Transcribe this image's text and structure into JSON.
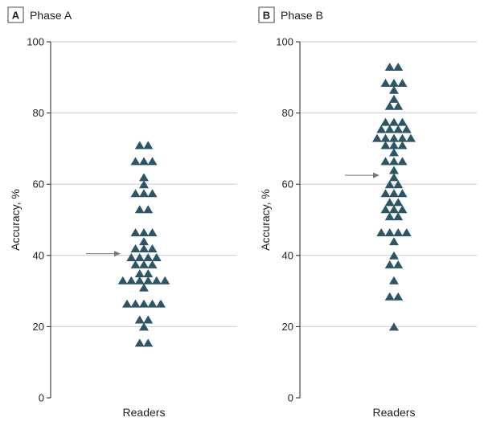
{
  "chart_data": [
    {
      "type": "scatter",
      "panel_letter": "A",
      "title": "Phase A",
      "xlabel": "Readers",
      "ylabel": "Accuracy, %",
      "ylim": [
        0,
        100
      ],
      "yticks": [
        "0",
        "20",
        "40",
        "60",
        "80",
        "100"
      ],
      "grid": true,
      "marker_color": "#2d5566",
      "arrow_value": 40.5,
      "points": [
        {
          "x": -0.5,
          "y": 71
        },
        {
          "x": 0.5,
          "y": 71
        },
        {
          "x": -1,
          "y": 66.5
        },
        {
          "x": 0,
          "y": 66.5
        },
        {
          "x": 1,
          "y": 66.5
        },
        {
          "x": 0,
          "y": 62
        },
        {
          "x": 0,
          "y": 60
        },
        {
          "x": -1,
          "y": 57.5
        },
        {
          "x": 0,
          "y": 57.5
        },
        {
          "x": 1,
          "y": 57.5
        },
        {
          "x": -0.5,
          "y": 53
        },
        {
          "x": 0.5,
          "y": 53
        },
        {
          "x": -1,
          "y": 46.5
        },
        {
          "x": 0,
          "y": 46.5
        },
        {
          "x": 1,
          "y": 46.5
        },
        {
          "x": 0,
          "y": 44
        },
        {
          "x": -1,
          "y": 42
        },
        {
          "x": 0,
          "y": 42
        },
        {
          "x": 1,
          "y": 42
        },
        {
          "x": -1.5,
          "y": 39.5
        },
        {
          "x": -0.5,
          "y": 39.5
        },
        {
          "x": 0.5,
          "y": 39.5
        },
        {
          "x": 1.5,
          "y": 39.5
        },
        {
          "x": -1,
          "y": 37.5
        },
        {
          "x": 0,
          "y": 37.5
        },
        {
          "x": 1,
          "y": 37.5
        },
        {
          "x": -0.5,
          "y": 35
        },
        {
          "x": 0.5,
          "y": 35
        },
        {
          "x": -2.5,
          "y": 33
        },
        {
          "x": -1.5,
          "y": 33
        },
        {
          "x": -0.5,
          "y": 33
        },
        {
          "x": 0.5,
          "y": 33
        },
        {
          "x": 1.5,
          "y": 33
        },
        {
          "x": 2.5,
          "y": 33
        },
        {
          "x": 0,
          "y": 31
        },
        {
          "x": -2,
          "y": 26.5
        },
        {
          "x": -1,
          "y": 26.5
        },
        {
          "x": 0,
          "y": 26.5
        },
        {
          "x": 1,
          "y": 26.5
        },
        {
          "x": 2,
          "y": 26.5
        },
        {
          "x": -0.5,
          "y": 22
        },
        {
          "x": 0.5,
          "y": 22
        },
        {
          "x": 0,
          "y": 20
        },
        {
          "x": -0.5,
          "y": 15.5
        },
        {
          "x": 0.5,
          "y": 15.5
        }
      ]
    },
    {
      "type": "scatter",
      "panel_letter": "B",
      "title": "Phase B",
      "xlabel": "Readers",
      "ylabel": "Accuracy, %",
      "ylim": [
        0,
        100
      ],
      "yticks": [
        "0",
        "20",
        "40",
        "60",
        "80",
        "100"
      ],
      "grid": true,
      "marker_color": "#2d5566",
      "arrow_value": 62.5,
      "points": [
        {
          "x": -0.5,
          "y": 93
        },
        {
          "x": 0.5,
          "y": 93
        },
        {
          "x": -1,
          "y": 88.5
        },
        {
          "x": 0,
          "y": 88.5
        },
        {
          "x": 1,
          "y": 88.5
        },
        {
          "x": 0,
          "y": 86.5
        },
        {
          "x": 0,
          "y": 84
        },
        {
          "x": -0.5,
          "y": 82
        },
        {
          "x": 0.5,
          "y": 82
        },
        {
          "x": -1,
          "y": 77.5
        },
        {
          "x": 0,
          "y": 77.5
        },
        {
          "x": 1,
          "y": 77.5
        },
        {
          "x": -1.5,
          "y": 75.5
        },
        {
          "x": -0.5,
          "y": 75.5
        },
        {
          "x": 0.5,
          "y": 75.5
        },
        {
          "x": 1.5,
          "y": 75.5
        },
        {
          "x": -2,
          "y": 73
        },
        {
          "x": -1,
          "y": 73
        },
        {
          "x": 0,
          "y": 73
        },
        {
          "x": 1,
          "y": 73
        },
        {
          "x": 2,
          "y": 73
        },
        {
          "x": -1,
          "y": 71
        },
        {
          "x": 0,
          "y": 71
        },
        {
          "x": 1,
          "y": 71
        },
        {
          "x": 0,
          "y": 69
        },
        {
          "x": -1,
          "y": 66.5
        },
        {
          "x": 0,
          "y": 66.5
        },
        {
          "x": 1,
          "y": 66.5
        },
        {
          "x": 0,
          "y": 64
        },
        {
          "x": 0,
          "y": 62
        },
        {
          "x": -0.5,
          "y": 60
        },
        {
          "x": 0.5,
          "y": 60
        },
        {
          "x": -1,
          "y": 57.5
        },
        {
          "x": 0,
          "y": 57.5
        },
        {
          "x": 1,
          "y": 57.5
        },
        {
          "x": -0.5,
          "y": 55
        },
        {
          "x": 0.5,
          "y": 55
        },
        {
          "x": -1,
          "y": 53
        },
        {
          "x": 0,
          "y": 53
        },
        {
          "x": 1,
          "y": 53
        },
        {
          "x": -0.5,
          "y": 51
        },
        {
          "x": 0.5,
          "y": 51
        },
        {
          "x": -1.5,
          "y": 46.5
        },
        {
          "x": -0.5,
          "y": 46.5
        },
        {
          "x": 0.5,
          "y": 46.5
        },
        {
          "x": 1.5,
          "y": 46.5
        },
        {
          "x": 0,
          "y": 44
        },
        {
          "x": 0,
          "y": 40
        },
        {
          "x": -0.5,
          "y": 37.5
        },
        {
          "x": 0.5,
          "y": 37.5
        },
        {
          "x": 0,
          "y": 33
        },
        {
          "x": -0.5,
          "y": 28.5
        },
        {
          "x": 0.5,
          "y": 28.5
        },
        {
          "x": 0,
          "y": 20
        }
      ]
    }
  ]
}
